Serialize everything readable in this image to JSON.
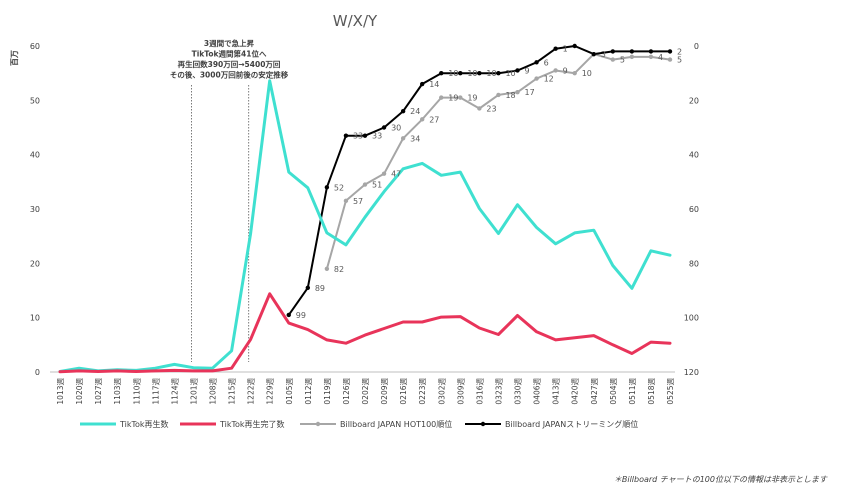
{
  "chart_data": {
    "type": "line",
    "title": "W/X/Y",
    "y_unit_label": "百万",
    "ylim": [
      0,
      60
    ],
    "y_ticks": [
      0,
      10,
      20,
      30,
      40,
      50,
      60
    ],
    "y2lim": [
      0,
      120
    ],
    "y2_inverted": true,
    "y2_ticks": [
      0,
      20,
      40,
      60,
      80,
      100,
      120
    ],
    "categories": [
      "1013週",
      "1020週",
      "1027週",
      "1103週",
      "1110週",
      "1117週",
      "1124週",
      "1201週",
      "1208週",
      "1215週",
      "1222週",
      "1229週",
      "0105週",
      "0112週",
      "0119週",
      "0126週",
      "0202週",
      "0209週",
      "0216週",
      "0223週",
      "0302週",
      "0309週",
      "0316週",
      "0323週",
      "0330週",
      "0406週",
      "0413週",
      "0420週",
      "0427週",
      "0504週",
      "0511週",
      "0518週",
      "0525週"
    ],
    "series": [
      {
        "name": "TikTok再生数",
        "axis": "left",
        "color": "#3fe0d0",
        "values": [
          0.1,
          0.7,
          0.2,
          0.4,
          0.3,
          0.7,
          1.4,
          0.8,
          0.7,
          3.9,
          25.5,
          53.6,
          36.8,
          33.9,
          25.6,
          23.4,
          28.5,
          33.2,
          37.4,
          38.4,
          36.2,
          36.8,
          30.1,
          25.5,
          30.8,
          26.6,
          23.6,
          25.6,
          26.1,
          19.6,
          15.4,
          22.3,
          21.5
        ]
      },
      {
        "name": "TikTok再生完了数",
        "axis": "left",
        "color": "#e8345a",
        "values": [
          0.05,
          0.2,
          0.1,
          0.2,
          0.1,
          0.2,
          0.3,
          0.2,
          0.2,
          0.7,
          6.0,
          14.4,
          9.0,
          7.8,
          5.9,
          5.3,
          6.8,
          8.0,
          9.2,
          9.2,
          10.1,
          10.2,
          8.1,
          6.9,
          10.4,
          7.4,
          5.9,
          6.3,
          6.7,
          5.0,
          3.4,
          5.5,
          5.3
        ]
      },
      {
        "name": "Billboard JAPAN HOT100順位",
        "axis": "right",
        "color": "#a6a6a6",
        "values": [
          null,
          null,
          null,
          null,
          null,
          null,
          null,
          null,
          null,
          null,
          null,
          null,
          null,
          null,
          82,
          57,
          51,
          47,
          34,
          27,
          19,
          19,
          23,
          18,
          17,
          12,
          9,
          10,
          3,
          5,
          4,
          4,
          5
        ],
        "labels": [
          null,
          null,
          null,
          null,
          null,
          null,
          null,
          null,
          null,
          null,
          null,
          null,
          null,
          null,
          "82",
          "57",
          "51",
          "47",
          "34",
          "27",
          "19",
          "19",
          "23",
          "18",
          "17",
          "12",
          "9",
          "10",
          "",
          "5",
          "",
          "4",
          "5"
        ]
      },
      {
        "name": "Billboard JAPANストリーミング順位",
        "axis": "right",
        "color": "#000000",
        "values": [
          null,
          null,
          null,
          null,
          null,
          null,
          null,
          null,
          null,
          null,
          null,
          null,
          99,
          89,
          52,
          33,
          33,
          30,
          24,
          14,
          10,
          10,
          10,
          10,
          9,
          6,
          1,
          0,
          3,
          2,
          2,
          2,
          2
        ],
        "labels": [
          null,
          null,
          null,
          null,
          null,
          null,
          null,
          null,
          null,
          null,
          null,
          null,
          "99",
          "89",
          "52",
          "33",
          "33",
          "30",
          "24",
          "14",
          "10",
          "10",
          "10",
          "10",
          "9",
          "6",
          "1",
          "",
          "3",
          "",
          "",
          "",
          "2"
        ]
      }
    ],
    "annotation": {
      "lines": [
        "3週間で急上昇",
        "TikTok週間第41位へ",
        "再生回数390万回→5400万回",
        "その後、3000万回前後の安定推移"
      ],
      "start_category": "1201週",
      "end_category": "1222週"
    },
    "footnote": "＊Billboard チャートの100位以下の情報は非表示とします",
    "legend_position": "bottom",
    "grid": false
  }
}
